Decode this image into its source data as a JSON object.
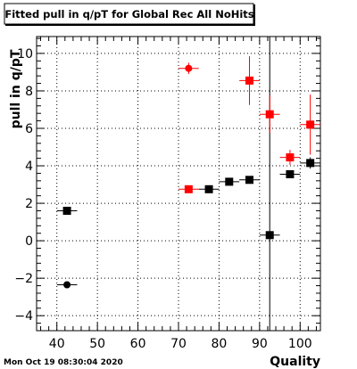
{
  "header": {
    "title": "Fitted pull in q/pT for Global Rec All NoHits"
  },
  "footer": {
    "timestamp": "Mon Oct 19 08:30:04 2020"
  },
  "chart_data": {
    "type": "scatter",
    "title": "Fitted pull in q/pT for Global Rec All NoHits",
    "xlabel": "Quality",
    "ylabel": "pull in q/pT",
    "xlim": [
      35,
      105
    ],
    "ylim": [
      -4.8,
      10.9
    ],
    "grid": true,
    "x_ticks": [
      {
        "v": 40,
        "label": "40"
      },
      {
        "v": 50,
        "label": "50"
      },
      {
        "v": 60,
        "label": "60"
      },
      {
        "v": 70,
        "label": "70"
      },
      {
        "v": 80,
        "label": "80"
      },
      {
        "v": 90,
        "label": "90"
      },
      {
        "v": 100,
        "label": "100"
      }
    ],
    "y_ticks": [
      {
        "v": -4,
        "label": "−4"
      },
      {
        "v": -2,
        "label": "−2"
      },
      {
        "v": 0,
        "label": "0"
      },
      {
        "v": 2,
        "label": "2"
      },
      {
        "v": 4,
        "label": "4"
      },
      {
        "v": 6,
        "label": "6"
      },
      {
        "v": 8,
        "label": "8"
      },
      {
        "v": 10,
        "label": "10"
      }
    ],
    "series": [
      {
        "color": "#000000",
        "marker": "square",
        "points": [
          {
            "x": 42.5,
            "y": 1.6,
            "xerr": 2.5,
            "yerr": 0.15
          },
          {
            "x": 77.5,
            "y": 2.75,
            "xerr": 2.5,
            "yerr": 0.1
          },
          {
            "x": 82.5,
            "y": 3.15,
            "xerr": 2.5,
            "yerr": 0.1
          },
          {
            "x": 87.5,
            "y": 3.25,
            "xerr": 2.5,
            "yerr": 0.1
          },
          {
            "x": 92.5,
            "y": 0.3,
            "xerr": 2.5,
            "yerr": 11.5
          },
          {
            "x": 97.5,
            "y": 3.55,
            "xerr": 2.5,
            "yerr": 0.15
          },
          {
            "x": 102.5,
            "y": 4.15,
            "xerr": 2.5,
            "yerr": 0.3
          }
        ]
      },
      {
        "color": "#000000",
        "marker": "circle",
        "points": [
          {
            "x": 42.5,
            "y": -2.35,
            "xerr": 2.5,
            "yerr": 0.1
          }
        ]
      },
      {
        "color": "#ff0000",
        "marker": "square",
        "points": [
          {
            "x": 72.5,
            "y": 2.75,
            "xerr": 2.5,
            "yerr": 0.1
          },
          {
            "x": 87.5,
            "y": 8.55,
            "xerr": 2.5,
            "yerr": 1.3
          },
          {
            "x": 92.5,
            "y": 6.75,
            "xerr": 2.5,
            "yerr": 1.0
          },
          {
            "x": 97.5,
            "y": 4.45,
            "xerr": 2.5,
            "yerr": 0.4
          },
          {
            "x": 102.5,
            "y": 6.2,
            "xerr": 2.5,
            "yerr": 1.6
          }
        ]
      },
      {
        "color": "#ff0000",
        "marker": "circle",
        "points": [
          {
            "x": 72.5,
            "y": 9.2,
            "xerr": 2.5,
            "yerr": 0.3
          }
        ]
      }
    ]
  }
}
